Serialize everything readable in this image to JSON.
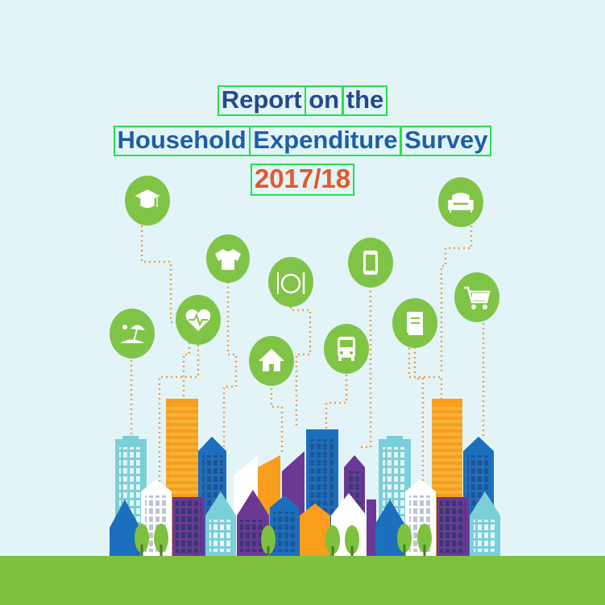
{
  "title": {
    "line1": [
      "Report",
      "on",
      "the"
    ],
    "line2": [
      "Household",
      "Expenditure",
      "Survey"
    ],
    "year": "2017/18"
  },
  "colors": {
    "sky": "#e3f4f9",
    "ground": "#7dc13f",
    "bubble": "#80c447",
    "dotted_line": "#e9a04f",
    "title_blue": "#234a88",
    "title_light_blue": "#1d5fa6",
    "title_orange": "#e15a2b",
    "highlight_box": "#22e24a"
  },
  "icons": [
    "graduation-cap-icon",
    "shirt-icon",
    "plate-fork-knife-icon",
    "smartphone-icon",
    "armchair-icon",
    "beach-umbrella-icon",
    "heartbeat-icon",
    "house-icon",
    "bus-icon",
    "book-icon",
    "shopping-cart-icon"
  ]
}
